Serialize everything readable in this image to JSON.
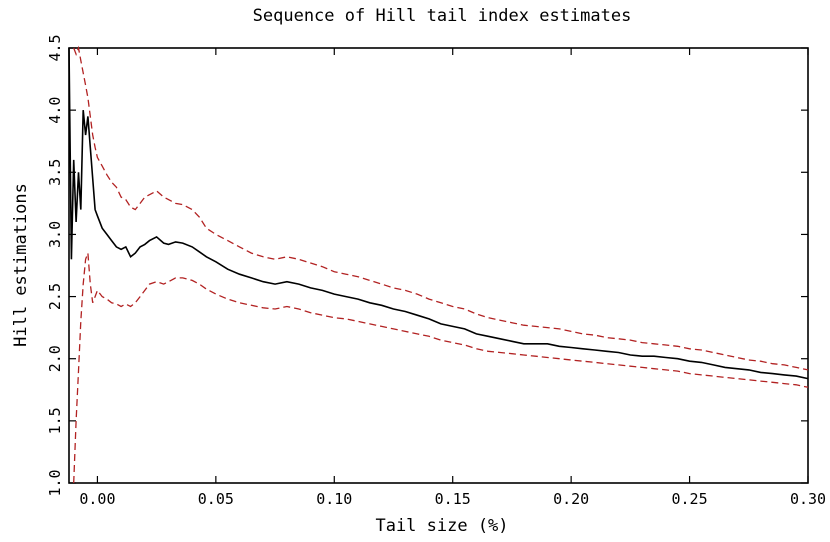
{
  "chart_data": {
    "type": "line",
    "title": "Sequence of Hill tail index estimates",
    "xlabel": "Tail size (%)",
    "ylabel": "Hill estimations",
    "xlim": [
      -0.012,
      0.3
    ],
    "ylim": [
      1.0,
      4.5
    ],
    "x_ticks": [
      "0.00",
      "0.05",
      "0.10",
      "0.15",
      "0.20",
      "0.25",
      "0.30"
    ],
    "x_tick_values": [
      0.0,
      0.05,
      0.1,
      0.15,
      0.2,
      0.25,
      0.3
    ],
    "y_ticks": [
      "1.0",
      "1.5",
      "2.0",
      "2.5",
      "3.0",
      "3.5",
      "4.0",
      "4.5"
    ],
    "y_tick_values": [
      1.0,
      1.5,
      2.0,
      2.5,
      3.0,
      3.5,
      4.0,
      4.5
    ],
    "grid": false,
    "legend": "none",
    "series": [
      {
        "role": "estimate",
        "color": "#000000",
        "style": "solid",
        "x": [
          -0.012,
          -0.011,
          -0.01,
          -0.009,
          -0.008,
          -0.007,
          -0.006,
          -0.005,
          -0.004,
          -0.003,
          -0.002,
          -0.001,
          0.0,
          0.002,
          0.004,
          0.006,
          0.008,
          0.01,
          0.012,
          0.014,
          0.016,
          0.018,
          0.02,
          0.022,
          0.025,
          0.028,
          0.03,
          0.033,
          0.036,
          0.04,
          0.043,
          0.046,
          0.05,
          0.055,
          0.06,
          0.065,
          0.07,
          0.075,
          0.08,
          0.085,
          0.09,
          0.095,
          0.1,
          0.105,
          0.11,
          0.115,
          0.12,
          0.125,
          0.13,
          0.135,
          0.14,
          0.145,
          0.15,
          0.155,
          0.16,
          0.165,
          0.17,
          0.175,
          0.18,
          0.185,
          0.19,
          0.195,
          0.2,
          0.205,
          0.21,
          0.215,
          0.22,
          0.225,
          0.23,
          0.235,
          0.24,
          0.245,
          0.25,
          0.255,
          0.26,
          0.265,
          0.27,
          0.275,
          0.28,
          0.285,
          0.29,
          0.295,
          0.3
        ],
        "y": [
          4.5,
          2.8,
          3.6,
          3.1,
          3.5,
          3.2,
          4.0,
          3.8,
          3.95,
          3.7,
          3.45,
          3.2,
          3.15,
          3.05,
          3.0,
          2.95,
          2.9,
          2.88,
          2.9,
          2.82,
          2.85,
          2.9,
          2.92,
          2.95,
          2.98,
          2.93,
          2.92,
          2.94,
          2.93,
          2.9,
          2.86,
          2.82,
          2.78,
          2.72,
          2.68,
          2.65,
          2.62,
          2.6,
          2.62,
          2.6,
          2.57,
          2.55,
          2.52,
          2.5,
          2.48,
          2.45,
          2.43,
          2.4,
          2.38,
          2.35,
          2.32,
          2.28,
          2.26,
          2.24,
          2.2,
          2.18,
          2.16,
          2.14,
          2.12,
          2.12,
          2.12,
          2.1,
          2.09,
          2.08,
          2.07,
          2.06,
          2.05,
          2.03,
          2.02,
          2.02,
          2.01,
          2.0,
          1.98,
          1.97,
          1.95,
          1.93,
          1.92,
          1.91,
          1.89,
          1.88,
          1.87,
          1.86,
          1.84
        ]
      },
      {
        "role": "upper-bound",
        "color": "#b22222",
        "style": "dashed",
        "x": [
          -0.01,
          -0.009,
          -0.008,
          -0.007,
          -0.006,
          -0.005,
          -0.004,
          -0.003,
          -0.002,
          -0.001,
          0.0,
          0.002,
          0.004,
          0.006,
          0.008,
          0.01,
          0.012,
          0.014,
          0.016,
          0.018,
          0.02,
          0.022,
          0.025,
          0.028,
          0.03,
          0.033,
          0.036,
          0.04,
          0.043,
          0.046,
          0.05,
          0.055,
          0.06,
          0.065,
          0.07,
          0.075,
          0.08,
          0.085,
          0.09,
          0.095,
          0.1,
          0.105,
          0.11,
          0.115,
          0.12,
          0.125,
          0.13,
          0.135,
          0.14,
          0.145,
          0.15,
          0.155,
          0.16,
          0.165,
          0.17,
          0.175,
          0.18,
          0.185,
          0.19,
          0.195,
          0.2,
          0.205,
          0.21,
          0.215,
          0.22,
          0.225,
          0.23,
          0.235,
          0.24,
          0.245,
          0.25,
          0.255,
          0.26,
          0.265,
          0.27,
          0.275,
          0.28,
          0.285,
          0.29,
          0.295,
          0.3
        ],
        "y": [
          4.5,
          4.45,
          4.5,
          4.4,
          4.3,
          4.2,
          4.1,
          3.95,
          3.8,
          3.7,
          3.62,
          3.55,
          3.48,
          3.42,
          3.38,
          3.3,
          3.28,
          3.22,
          3.2,
          3.25,
          3.3,
          3.32,
          3.35,
          3.3,
          3.28,
          3.25,
          3.24,
          3.2,
          3.14,
          3.05,
          3.0,
          2.95,
          2.9,
          2.85,
          2.82,
          2.8,
          2.82,
          2.8,
          2.77,
          2.74,
          2.7,
          2.68,
          2.66,
          2.63,
          2.6,
          2.57,
          2.55,
          2.52,
          2.48,
          2.45,
          2.42,
          2.4,
          2.36,
          2.33,
          2.31,
          2.29,
          2.27,
          2.26,
          2.25,
          2.24,
          2.22,
          2.2,
          2.19,
          2.17,
          2.16,
          2.15,
          2.13,
          2.12,
          2.11,
          2.1,
          2.08,
          2.07,
          2.05,
          2.03,
          2.01,
          1.99,
          1.98,
          1.96,
          1.95,
          1.93,
          1.91
        ]
      },
      {
        "role": "lower-bound",
        "color": "#b22222",
        "style": "dashed",
        "x": [
          -0.01,
          -0.009,
          -0.008,
          -0.007,
          -0.006,
          -0.005,
          -0.004,
          -0.003,
          -0.002,
          -0.001,
          0.0,
          0.002,
          0.004,
          0.006,
          0.008,
          0.01,
          0.012,
          0.014,
          0.016,
          0.018,
          0.02,
          0.022,
          0.025,
          0.028,
          0.03,
          0.033,
          0.036,
          0.04,
          0.043,
          0.046,
          0.05,
          0.055,
          0.06,
          0.065,
          0.07,
          0.075,
          0.08,
          0.085,
          0.09,
          0.095,
          0.1,
          0.105,
          0.11,
          0.115,
          0.12,
          0.125,
          0.13,
          0.135,
          0.14,
          0.145,
          0.15,
          0.155,
          0.16,
          0.165,
          0.17,
          0.175,
          0.18,
          0.185,
          0.19,
          0.195,
          0.2,
          0.205,
          0.21,
          0.215,
          0.22,
          0.225,
          0.23,
          0.235,
          0.24,
          0.245,
          0.25,
          0.255,
          0.26,
          0.265,
          0.27,
          0.275,
          0.28,
          0.285,
          0.29,
          0.295,
          0.3
        ],
        "y": [
          1.0,
          1.5,
          1.9,
          2.3,
          2.6,
          2.8,
          2.85,
          2.6,
          2.45,
          2.5,
          2.55,
          2.5,
          2.48,
          2.45,
          2.44,
          2.42,
          2.44,
          2.42,
          2.45,
          2.5,
          2.55,
          2.6,
          2.62,
          2.6,
          2.62,
          2.65,
          2.65,
          2.63,
          2.6,
          2.56,
          2.52,
          2.48,
          2.45,
          2.43,
          2.41,
          2.4,
          2.42,
          2.4,
          2.37,
          2.35,
          2.33,
          2.32,
          2.3,
          2.28,
          2.26,
          2.24,
          2.22,
          2.2,
          2.18,
          2.15,
          2.13,
          2.11,
          2.08,
          2.06,
          2.05,
          2.04,
          2.03,
          2.02,
          2.01,
          2.0,
          1.99,
          1.98,
          1.97,
          1.96,
          1.95,
          1.94,
          1.93,
          1.92,
          1.91,
          1.9,
          1.88,
          1.87,
          1.86,
          1.85,
          1.84,
          1.83,
          1.82,
          1.81,
          1.8,
          1.79,
          1.77
        ]
      }
    ]
  }
}
